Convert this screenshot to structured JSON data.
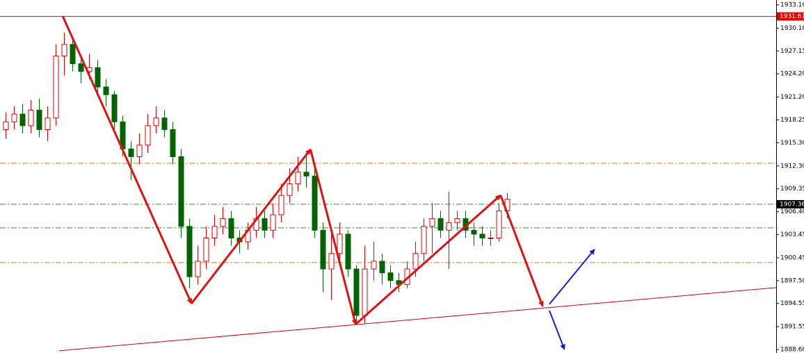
{
  "chart_data": {
    "type": "candlestick",
    "up_color": "#e00000",
    "down_color": "#006400",
    "xlim": [
      -0.67,
      92.25
    ],
    "ylim": [
      1888.15,
      1933.73
    ],
    "yticks": [
      {
        "value": 1933.1,
        "label": "1933.10"
      },
      {
        "value": 1930.1,
        "label": "1930.10"
      },
      1927.15,
      {
        "value": 1924.2,
        "label": "1924.20"
      },
      {
        "value": 1921.2,
        "label": "1921.20"
      },
      1918.25,
      {
        "value": 1915.3,
        "label": "1915.30"
      },
      {
        "value": 1912.3,
        "label": "1912.30"
      },
      1909.35,
      {
        "value": 1906.4,
        "label": "1906.40"
      },
      1903.45,
      1900.45,
      {
        "value": 1897.5,
        "label": "1897.50"
      },
      1894.55,
      1891.55,
      {
        "value": 1888.6,
        "label": "1888.60"
      }
    ],
    "open": [
      1917.0,
      1918.0,
      1919.0,
      1917.5,
      1919.5,
      1917.0,
      1918.5,
      1926.5,
      1928.0,
      1925.5,
      1924.5,
      1925.0,
      1922.5,
      1921.5,
      1918.0,
      1914.5,
      1913.5,
      1915.0,
      1917.5,
      1918.5,
      1917.0,
      1913.5,
      1904.5,
      1898.0,
      1900.0,
      1903.0,
      1904.5,
      1905.5,
      1903.0,
      1902.5,
      1904.0,
      1905.5,
      1904.0,
      1906.0,
      1908.5,
      1910.0,
      1911.5,
      1911.0,
      1904.0,
      1899.0,
      1901.0,
      1903.5,
      1899.0,
      1893.0,
      1899.0,
      1900.0,
      1898.5,
      1897.5,
      1897.0,
      1899.0,
      1901.0,
      1904.5,
      1905.5,
      1904.0,
      1905.0,
      1905.5,
      1904.0,
      1903.5,
      1903.0,
      1903.0,
      1906.5
    ],
    "high": [
      1919.2,
      1920.0,
      1920.3,
      1920.8,
      1921.0,
      1920.0,
      1928.0,
      1929.5,
      1929.0,
      1926.5,
      1926.8,
      1926.0,
      1923.5,
      1922.0,
      1918.8,
      1915.5,
      1916.5,
      1919.0,
      1920.0,
      1919.5,
      1918.0,
      1914.5,
      1905.5,
      1902.0,
      1904.5,
      1906.0,
      1907.0,
      1906.5,
      1904.0,
      1905.0,
      1907.0,
      1906.5,
      1907.5,
      1910.0,
      1912.0,
      1913.5,
      1914.0,
      1912.0,
      1905.0,
      1903.5,
      1905.0,
      1904.0,
      1899.5,
      1902.0,
      1902.5,
      1901.0,
      1899.5,
      1898.5,
      1900.0,
      1902.5,
      1905.5,
      1907.5,
      1906.5,
      1909.0,
      1906.5,
      1906.5,
      1905.0,
      1904.5,
      1904.0,
      1907.5,
      1908.8
    ],
    "low": [
      1915.8,
      1917.0,
      1916.5,
      1916.5,
      1916.0,
      1915.5,
      1917.5,
      1924.0,
      1924.5,
      1923.0,
      1923.5,
      1921.5,
      1920.0,
      1916.5,
      1913.5,
      1910.5,
      1912.5,
      1914.0,
      1916.5,
      1916.0,
      1912.5,
      1903.0,
      1896.5,
      1897.0,
      1899.0,
      1902.0,
      1903.5,
      1902.0,
      1901.0,
      1901.5,
      1903.0,
      1903.0,
      1903.0,
      1905.0,
      1907.5,
      1909.0,
      1909.5,
      1903.0,
      1896.0,
      1895.0,
      1900.0,
      1898.0,
      1891.8,
      1892.0,
      1897.5,
      1897.0,
      1896.5,
      1896.0,
      1896.5,
      1898.0,
      1900.0,
      1901.0,
      1903.0,
      1899.0,
      1904.0,
      1903.0,
      1902.0,
      1902.0,
      1902.0,
      1902.5,
      1905.5
    ],
    "close": [
      1918.0,
      1919.0,
      1917.5,
      1919.5,
      1917.0,
      1918.5,
      1926.5,
      1928.0,
      1925.5,
      1924.5,
      1925.0,
      1922.5,
      1921.5,
      1918.0,
      1914.5,
      1913.5,
      1915.0,
      1917.5,
      1918.5,
      1917.0,
      1913.5,
      1904.5,
      1898.0,
      1900.0,
      1903.0,
      1904.5,
      1905.5,
      1903.0,
      1902.5,
      1904.0,
      1905.5,
      1904.0,
      1906.0,
      1908.5,
      1910.0,
      1911.5,
      1911.0,
      1904.0,
      1899.0,
      1901.0,
      1903.5,
      1899.0,
      1893.0,
      1899.0,
      1900.0,
      1898.5,
      1897.5,
      1897.0,
      1899.0,
      1901.0,
      1904.5,
      1905.5,
      1904.0,
      1905.0,
      1905.5,
      1904.0,
      1903.5,
      1903.0,
      1903.0,
      1906.5,
      1908.0
    ],
    "levels": [
      {
        "value": 1931.61,
        "color": "#e00000",
        "style": "solid"
      },
      {
        "value": 1912.65,
        "color": "#ff6a00",
        "style": "dashdot"
      },
      {
        "value": 1907.36,
        "color": "#2e8b2e",
        "style": "dashdot"
      },
      {
        "value": 1904.31,
        "color": "#2e8b2e",
        "style": "dashdot"
      },
      {
        "value": 1899.83,
        "color": "#ff6a00",
        "style": "dashdot"
      }
    ],
    "price_markers": [
      {
        "value": 1931.61,
        "color": "#e00000"
      },
      {
        "value": 1907.36,
        "color": "#000000"
      }
    ],
    "trend_lines": [
      {
        "x": [
          6.4,
          92.25
        ],
        "y": [
          1888.44,
          1896.6
        ],
        "color": "#d00000"
      }
    ],
    "arrows": [
      {
        "x": [
          6.83,
          22.25
        ],
        "y": [
          1931.67,
          1894.54
        ],
        "color": "#e01010"
      },
      {
        "x": [
          22.25,
          36.5
        ],
        "y": [
          1894.54,
          1914.45
        ],
        "color": "#e01010"
      },
      {
        "x": [
          36.5,
          41.9
        ],
        "y": [
          1914.45,
          1891.85
        ],
        "color": "#e01010"
      },
      {
        "x": [
          41.9,
          59.25
        ],
        "y": [
          1891.85,
          1908.53
        ],
        "color": "#e01010"
      },
      {
        "x": [
          59.25,
          64.3
        ],
        "y": [
          1908.53,
          1894.18
        ],
        "color": "#e01010"
      },
      {
        "x": [
          65.1,
          70.5
        ],
        "y": [
          1894.45,
          1901.53
        ],
        "color": "#1020d0"
      },
      {
        "x": [
          65.1,
          66.9
        ],
        "y": [
          1893.64,
          1888.62
        ],
        "color": "#1020d0"
      }
    ]
  }
}
